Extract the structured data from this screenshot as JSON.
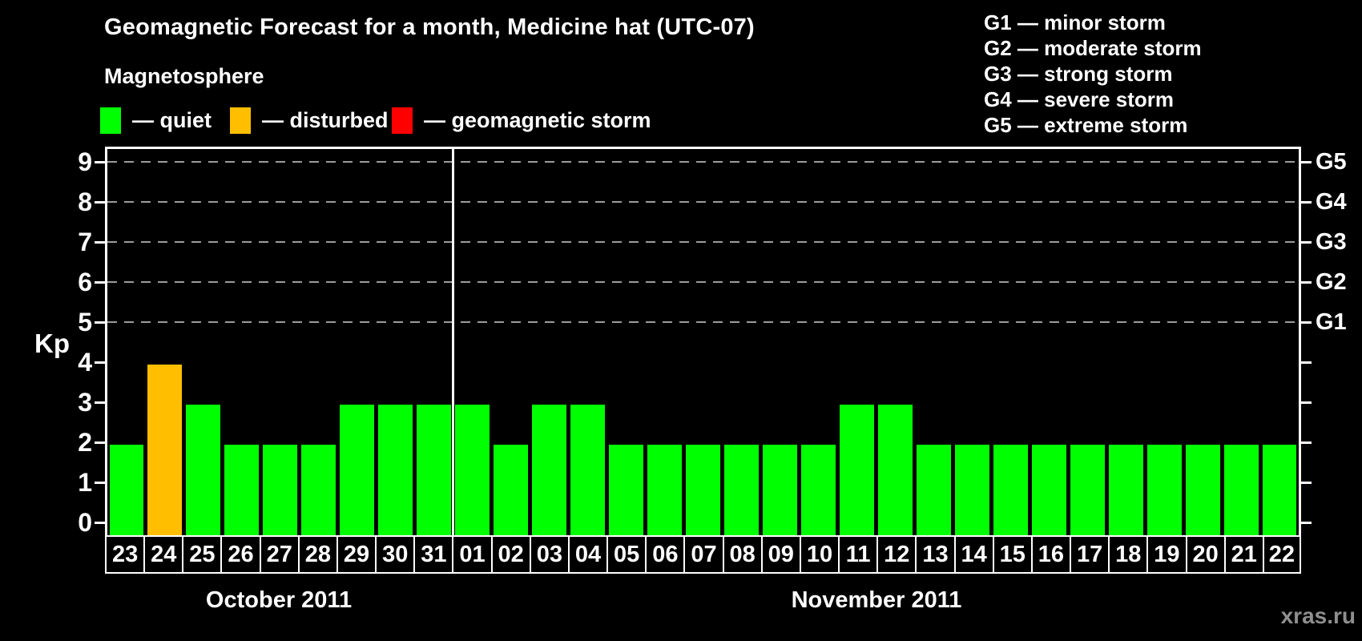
{
  "title": "Geomagnetic Forecast for a month, Medicine hat (UTC-07)",
  "legend": {
    "heading": "Magnetosphere",
    "items": [
      {
        "status": "quiet",
        "label": "— quiet",
        "color": "#00ff00"
      },
      {
        "status": "disturbed",
        "label": "— disturbed",
        "color": "#ffbf00"
      },
      {
        "status": "storm",
        "label": "— geomagnetic storm",
        "color": "#ff0000"
      }
    ]
  },
  "storm_scale": {
    "items": [
      {
        "code": "G1",
        "kp": 5,
        "label": "G1 — minor storm"
      },
      {
        "code": "G2",
        "kp": 6,
        "label": "G2 — moderate storm"
      },
      {
        "code": "G3",
        "kp": 7,
        "label": "G3 — strong storm"
      },
      {
        "code": "G4",
        "kp": 8,
        "label": "G4 — severe storm"
      },
      {
        "code": "G5",
        "kp": 9,
        "label": "G5 — extreme storm"
      }
    ]
  },
  "watermark": "xras.ru",
  "chart_data": {
    "type": "bar",
    "title": "Geomagnetic Forecast for a month, Medicine hat (UTC-07)",
    "ylabel": "Kp",
    "y_ticks": [
      0,
      1,
      2,
      3,
      4,
      5,
      6,
      7,
      8,
      9
    ],
    "ylim": [
      -0.35,
      9.7
    ],
    "grid": "horizontal dashed gray lines at Kp 5-9, ticks on both axes at every integer",
    "gridline_kp": [
      5,
      6,
      7,
      8,
      9
    ],
    "right_axis_labels": [
      {
        "label": "G1",
        "kp": 5
      },
      {
        "label": "G2",
        "kp": 6
      },
      {
        "label": "G3",
        "kp": 7
      },
      {
        "label": "G4",
        "kp": 8
      },
      {
        "label": "G5",
        "kp": 9
      }
    ],
    "categories": [
      "23",
      "24",
      "25",
      "26",
      "27",
      "28",
      "29",
      "30",
      "31",
      "01",
      "02",
      "03",
      "04",
      "05",
      "06",
      "07",
      "08",
      "09",
      "10",
      "11",
      "12",
      "13",
      "14",
      "15",
      "16",
      "17",
      "18",
      "19",
      "20",
      "21",
      "22"
    ],
    "values": [
      2,
      4,
      3,
      2,
      2,
      2,
      3,
      3,
      3,
      3,
      2,
      3,
      3,
      2,
      2,
      2,
      2,
      2,
      2,
      3,
      3,
      2,
      2,
      2,
      2,
      2,
      2,
      2,
      2,
      2,
      2
    ],
    "statuses": [
      "quiet",
      "disturbed",
      "quiet",
      "quiet",
      "quiet",
      "quiet",
      "quiet",
      "quiet",
      "quiet",
      "quiet",
      "quiet",
      "quiet",
      "quiet",
      "quiet",
      "quiet",
      "quiet",
      "quiet",
      "quiet",
      "quiet",
      "quiet",
      "quiet",
      "quiet",
      "quiet",
      "quiet",
      "quiet",
      "quiet",
      "quiet",
      "quiet",
      "quiet",
      "quiet",
      "quiet"
    ],
    "bar_colors": {
      "quiet": "#00ff00",
      "disturbed": "#ffbf00",
      "storm": "#ff0000"
    },
    "months": [
      {
        "label": "October 2011",
        "days": 9
      },
      {
        "label": "November 2011",
        "days": 22
      }
    ],
    "legend_position": "top"
  }
}
